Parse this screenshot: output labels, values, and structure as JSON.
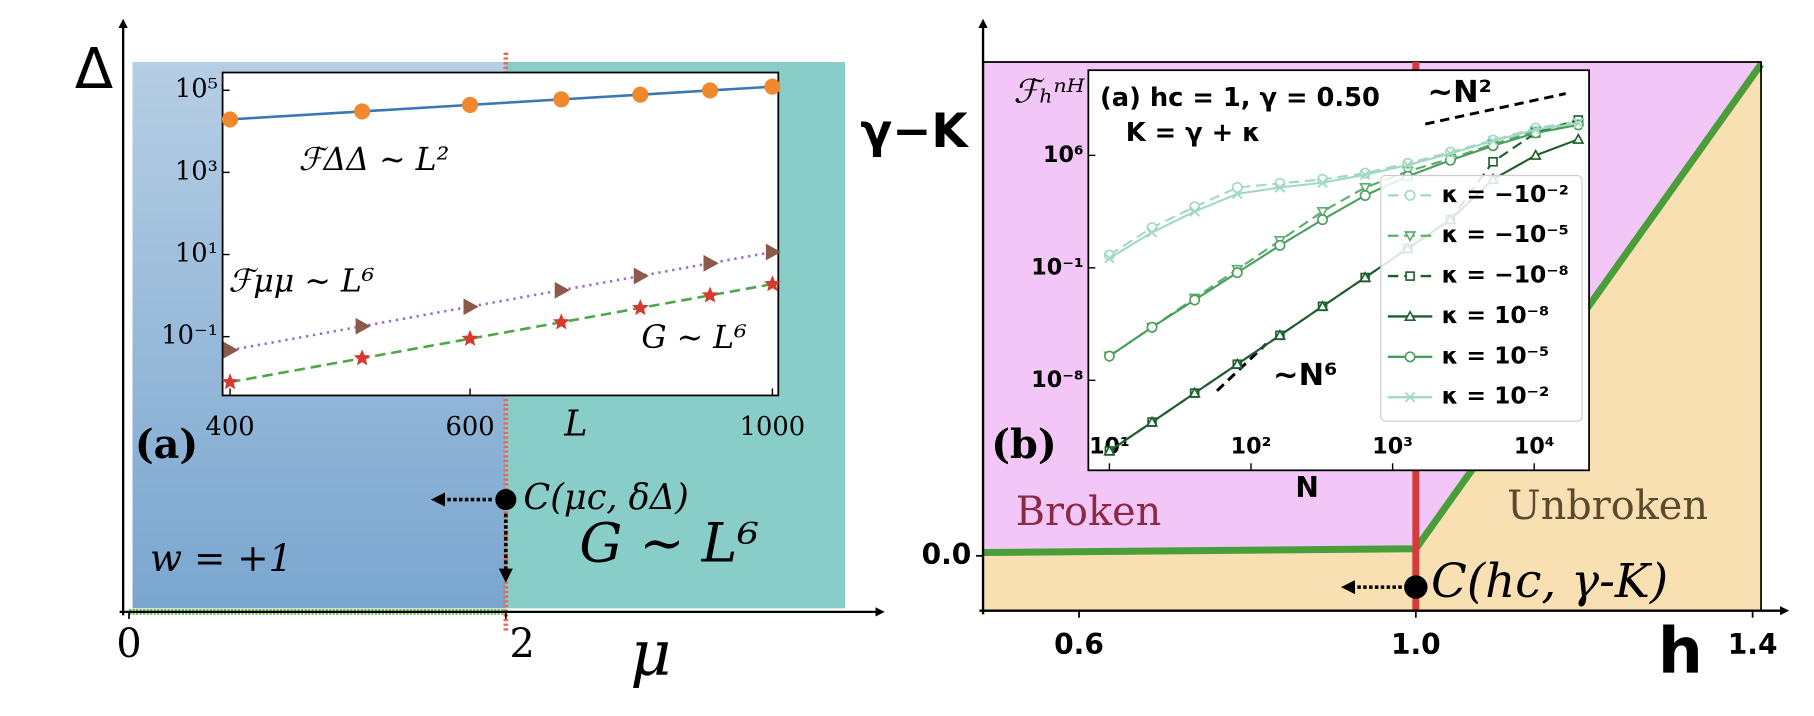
{
  "chart_data": [
    {
      "type": "phase",
      "panel": "(a)",
      "xlabel": "μ",
      "ylabel": "Δ",
      "xlim": [
        0,
        3.8
      ],
      "xticks": [
        0,
        2
      ],
      "region_colors": [
        "#7aa6cf",
        "#89cdc8"
      ],
      "critical_line_color": "#ea6b55",
      "noise_color": "#6abf4b",
      "critical_point": {
        "x": 2,
        "label": "C(μc, δΔ)"
      },
      "annotations": [
        "w = +1",
        "G ∼ L⁶"
      ],
      "inset": {
        "type": "line",
        "xlabel": "L",
        "xscale": "log",
        "yscale": "log",
        "xlim": [
          395,
          1010
        ],
        "ylim": [
          0.0037,
          270000
        ],
        "xticks": [
          400,
          600,
          1000
        ],
        "yticks": [
          {
            "value": 100000,
            "label": "10⁵"
          },
          {
            "value": 1000,
            "label": "10³"
          },
          {
            "value": 10,
            "label": "10¹"
          },
          {
            "value": 0.1,
            "label": "10⁻¹"
          }
        ],
        "x": [
          400,
          500,
          600,
          700,
          800,
          900,
          1000
        ],
        "series": [
          {
            "label": "ℱΔΔ ∼ L²",
            "color": "#3a78b5",
            "marker_color": "#f0892e",
            "marker": "circle",
            "linestyle": "solid",
            "values": [
              19500,
              30500,
              44000,
              60000,
              78000,
              99000,
              122000
            ]
          },
          {
            "label": "ℱμμ ∼ L⁶",
            "color": "#9b6ac9",
            "marker_color": "#8c5a4a",
            "marker": "triangle-right",
            "linestyle": "dotted",
            "values": [
              0.047,
              0.179,
              0.535,
              1.35,
              3.0,
              6.1,
              11.5
            ]
          },
          {
            "label": "G ∼ L⁶",
            "color": "#4ea64a",
            "marker_color": "#d63a2e",
            "marker": "star",
            "linestyle": "dashed",
            "values": [
              0.0078,
              0.0298,
              0.089,
              0.224,
              0.5,
              1.01,
              1.9
            ]
          }
        ]
      }
    },
    {
      "type": "phase",
      "panel": "(b)",
      "xlabel": "h",
      "ylabel": "γ−K",
      "xlim": [
        0.486,
        1.41
      ],
      "ylim": [
        -0.1,
        0.9
      ],
      "xticks": [
        0.6,
        {
          "value": 1,
          "label": "1.0"
        },
        1.4
      ],
      "yticks": [
        {
          "value": 0,
          "label": "0.0"
        }
      ],
      "region_colors": [
        "#f2c6f6",
        "#f9e0b3"
      ],
      "critical_line_color": "#d43c3c",
      "boundary_color": "#4a9e3a",
      "boundary": {
        "x": [
          0.486,
          1,
          1.41
        ],
        "y": [
          0.006,
          0.013,
          0.896
        ]
      },
      "critical_point": {
        "x": 1,
        "y": -0.057,
        "label": "C(hc, γ-K)"
      },
      "regions": [
        "Broken",
        "Unbroken"
      ],
      "inset": {
        "type": "line",
        "title": "(a) hc = 1, γ = 0.50",
        "subtitle": "K = γ + κ",
        "xlabel": "N",
        "ylabel": "ℱₕⁿᴴ",
        "xscale": "log",
        "yscale": "log",
        "open_markers": true,
        "xlim": [
          7.1,
          24400
        ],
        "ylim": [
          2.5e-14,
          200000000000.0
        ],
        "xticks": [
          {
            "value": 10,
            "label": "10¹"
          },
          {
            "value": 100,
            "label": "10²"
          },
          {
            "value": 1000,
            "label": "10³"
          },
          {
            "value": 10000,
            "label": "10⁴"
          }
        ],
        "yticks": [
          {
            "value": 1000000,
            "label": "10⁶"
          },
          {
            "value": 0.1,
            "label": "10⁻¹"
          },
          {
            "value": 1e-08,
            "label": "10⁻⁸"
          }
        ],
        "annotations": [
          "∼N²",
          "∼N⁶"
        ],
        "x": [
          10,
          20,
          40,
          80,
          160,
          320,
          640,
          1280,
          2560,
          5120,
          10240,
          20480
        ],
        "series": [
          {
            "name": "κ = −10⁻²",
            "color": "#a3d9c4",
            "marker": "circle",
            "linestyle": "dashed",
            "values": [
              0.63,
              32,
              630,
              10000,
              18000,
              32000,
              79000,
              320000,
              1600000,
              8900000,
              50000000,
              130000000
            ]
          },
          {
            "name": "κ = −10⁻⁵",
            "color": "#5cae6e",
            "marker": "triangle-down",
            "linestyle": "dashed",
            "values": [
              3.2e-07,
              2e-05,
              0.0013,
              0.079,
              5,
              320,
              10000,
              100000,
              630000,
              5000000,
              32000000,
              100000000
            ]
          },
          {
            "name": "κ = −10⁻⁸",
            "color": "#1d5e2e",
            "marker": "square",
            "linestyle": "dashed",
            "values": [
              4e-13,
              2.5e-11,
              1.6e-09,
              1e-07,
              6.3e-06,
              0.0004,
              0.025,
              1.6,
              100,
              400000,
              25000000,
              160000000
            ]
          },
          {
            "name": "κ = 10⁻⁸",
            "color": "#1d5e2e",
            "marker": "triangle-up",
            "linestyle": "solid",
            "values": [
              4e-13,
              2.5e-11,
              1.6e-09,
              1e-07,
              6.3e-06,
              0.0004,
              0.025,
              1.6,
              100,
              32000,
              1000000,
              10000000
            ]
          },
          {
            "name": "κ = 10⁻⁵",
            "color": "#4a9e5c",
            "marker": "circle",
            "linestyle": "solid",
            "values": [
              3.2e-07,
              2e-05,
              0.001,
              0.05,
              2.5,
              100,
              3200,
              50000,
              500000,
              4000000,
              25000000,
              79000000
            ]
          },
          {
            "name": "κ = 10⁻²",
            "color": "#a3d9c4",
            "marker": "x",
            "linestyle": "solid",
            "values": [
              0.4,
              16,
              320,
              4000,
              10000,
              20000,
              63000,
              250000,
              1300000,
              7900000,
              40000000,
              100000000
            ]
          }
        ]
      }
    }
  ]
}
